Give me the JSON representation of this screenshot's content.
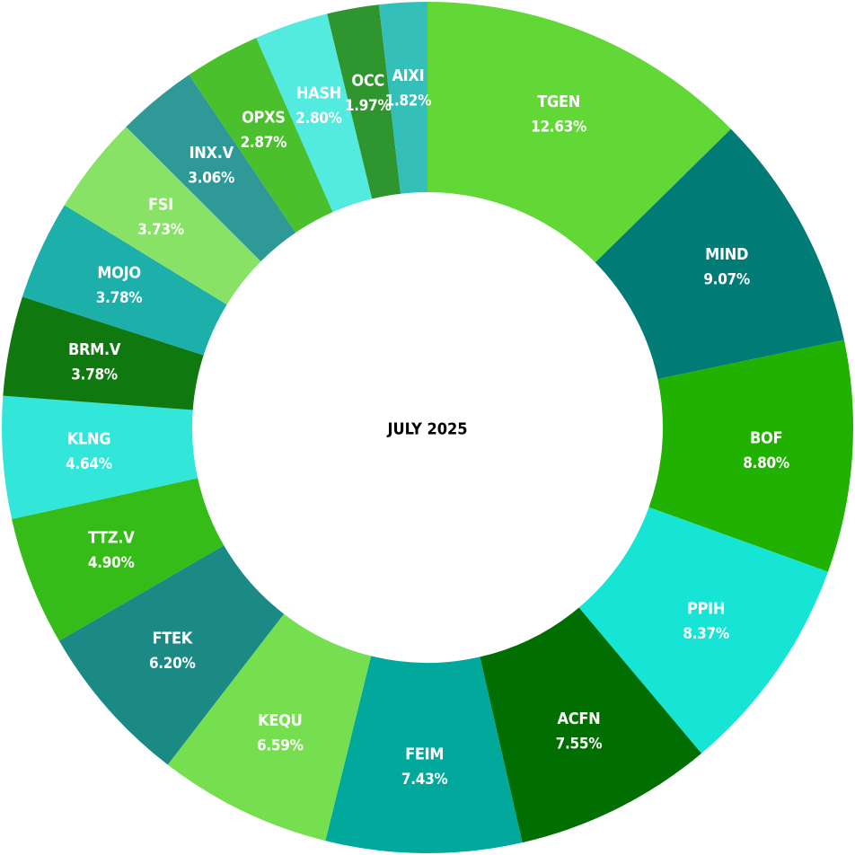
{
  "chart_data": {
    "type": "pie",
    "center_label": "JULY  2025",
    "slices": [
      {
        "name": "TGEN",
        "value": 12.63,
        "label": "12.63%",
        "color": "#61d836"
      },
      {
        "name": "MIND",
        "value": 9.07,
        "label": "9.07%",
        "color": "#007b76"
      },
      {
        "name": "BOF",
        "value": 8.8,
        "label": "8.80%",
        "color": "#21b100"
      },
      {
        "name": "PPIH",
        "value": 8.37,
        "label": "8.37%",
        "color": "#16e5d5"
      },
      {
        "name": "ACFN",
        "value": 7.55,
        "label": "7.55%",
        "color": "#006e00"
      },
      {
        "name": "FEIM",
        "value": 7.43,
        "label": "7.43%",
        "color": "#00a99b"
      },
      {
        "name": "KEQU",
        "value": 6.59,
        "label": "6.59%",
        "color": "#75df50"
      },
      {
        "name": "FTEK",
        "value": 6.2,
        "label": "6.20%",
        "color": "#1b8a85"
      },
      {
        "name": "TTZ.V",
        "value": 4.9,
        "label": "4.90%",
        "color": "#36bc18"
      },
      {
        "name": "KLNG",
        "value": 4.64,
        "label": "4.64%",
        "color": "#33e6da"
      },
      {
        "name": "BRM.V",
        "value": 3.78,
        "label": "3.78%",
        "color": "#0f780f"
      },
      {
        "name": "MOJO",
        "value": 3.78,
        "label": "3.78%",
        "color": "#1db0aa"
      },
      {
        "name": "FSI",
        "value": 3.73,
        "label": "3.73%",
        "color": "#88e266"
      },
      {
        "name": "INX.V",
        "value": 3.06,
        "label": "3.06%",
        "color": "#2e9996"
      },
      {
        "name": "OPXS",
        "value": 2.87,
        "label": "2.87%",
        "color": "#4ac12c"
      },
      {
        "name": "HASH",
        "value": 2.8,
        "label": "2.80%",
        "color": "#53ebe0"
      },
      {
        "name": "OCC",
        "value": 1.97,
        "label": "1.97%",
        "color": "#2f962f"
      },
      {
        "name": "AIXI",
        "value": 1.82,
        "label": "1.82%",
        "color": "#34bfb9"
      }
    ]
  }
}
